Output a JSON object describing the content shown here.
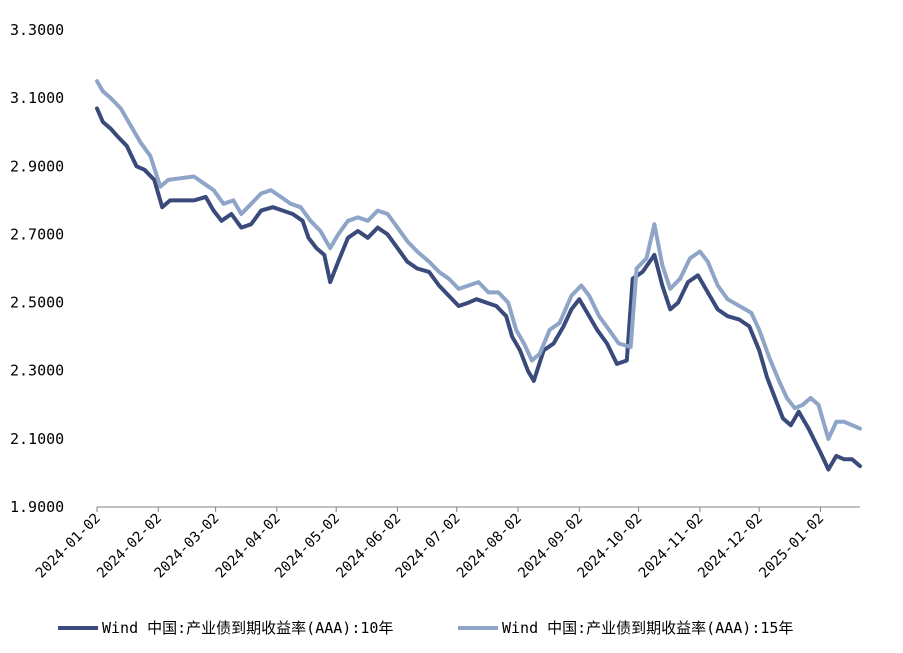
{
  "chart_data": {
    "type": "line",
    "title": "",
    "xlabel": "",
    "ylabel": "",
    "ylim": [
      1.9,
      3.3
    ],
    "yticks": [
      "3.3000",
      "3.1000",
      "2.9000",
      "2.7000",
      "2.5000",
      "2.3000",
      "2.1000",
      "1.9000"
    ],
    "xticks": [
      "2024-01-02",
      "2024-02-02",
      "2024-03-02",
      "2024-04-02",
      "2024-05-02",
      "2024-06-02",
      "2024-07-02",
      "2024-08-02",
      "2024-09-02",
      "2024-10-02",
      "2024-11-02",
      "2024-12-02",
      "2025-01-02"
    ],
    "x_start": "2024-01-02",
    "x_end": "2025-01-22",
    "grid": false,
    "legend_position": "bottom",
    "series": [
      {
        "name": "Wind 中国:产业债到期收益率(AAA):10年",
        "color": "#3a4a7a",
        "points": [
          [
            "2024-01-02",
            3.07
          ],
          [
            "2024-01-05",
            3.03
          ],
          [
            "2024-01-09",
            3.01
          ],
          [
            "2024-01-12",
            2.99
          ],
          [
            "2024-01-17",
            2.96
          ],
          [
            "2024-01-22",
            2.9
          ],
          [
            "2024-01-26",
            2.89
          ],
          [
            "2024-01-31",
            2.86
          ],
          [
            "2024-02-04",
            2.78
          ],
          [
            "2024-02-08",
            2.8
          ],
          [
            "2024-02-20",
            2.8
          ],
          [
            "2024-02-26",
            2.81
          ],
          [
            "2024-03-01",
            2.77
          ],
          [
            "2024-03-05",
            2.74
          ],
          [
            "2024-03-10",
            2.76
          ],
          [
            "2024-03-15",
            2.72
          ],
          [
            "2024-03-20",
            2.73
          ],
          [
            "2024-03-25",
            2.77
          ],
          [
            "2024-03-31",
            2.78
          ],
          [
            "2024-04-05",
            2.77
          ],
          [
            "2024-04-10",
            2.76
          ],
          [
            "2024-04-15",
            2.74
          ],
          [
            "2024-04-18",
            2.69
          ],
          [
            "2024-04-22",
            2.66
          ],
          [
            "2024-04-26",
            2.64
          ],
          [
            "2024-04-29",
            2.56
          ],
          [
            "2024-05-03",
            2.62
          ],
          [
            "2024-05-08",
            2.69
          ],
          [
            "2024-05-13",
            2.71
          ],
          [
            "2024-05-18",
            2.69
          ],
          [
            "2024-05-23",
            2.72
          ],
          [
            "2024-05-28",
            2.7
          ],
          [
            "2024-06-02",
            2.66
          ],
          [
            "2024-06-07",
            2.62
          ],
          [
            "2024-06-12",
            2.6
          ],
          [
            "2024-06-18",
            2.59
          ],
          [
            "2024-06-23",
            2.55
          ],
          [
            "2024-06-28",
            2.52
          ],
          [
            "2024-07-03",
            2.49
          ],
          [
            "2024-07-08",
            2.5
          ],
          [
            "2024-07-12",
            2.51
          ],
          [
            "2024-07-17",
            2.5
          ],
          [
            "2024-07-22",
            2.49
          ],
          [
            "2024-07-27",
            2.46
          ],
          [
            "2024-07-30",
            2.4
          ],
          [
            "2024-08-03",
            2.36
          ],
          [
            "2024-08-07",
            2.3
          ],
          [
            "2024-08-10",
            2.27
          ],
          [
            "2024-08-15",
            2.36
          ],
          [
            "2024-08-20",
            2.38
          ],
          [
            "2024-08-25",
            2.43
          ],
          [
            "2024-08-29",
            2.48
          ],
          [
            "2024-09-02",
            2.51
          ],
          [
            "2024-09-06",
            2.47
          ],
          [
            "2024-09-11",
            2.42
          ],
          [
            "2024-09-16",
            2.38
          ],
          [
            "2024-09-21",
            2.32
          ],
          [
            "2024-09-26",
            2.33
          ],
          [
            "2024-09-29",
            2.57
          ],
          [
            "2024-10-04",
            2.59
          ],
          [
            "2024-10-10",
            2.64
          ],
          [
            "2024-10-14",
            2.55
          ],
          [
            "2024-10-18",
            2.48
          ],
          [
            "2024-10-22",
            2.5
          ],
          [
            "2024-10-27",
            2.56
          ],
          [
            "2024-11-01",
            2.58
          ],
          [
            "2024-11-06",
            2.53
          ],
          [
            "2024-11-11",
            2.48
          ],
          [
            "2024-11-16",
            2.46
          ],
          [
            "2024-11-22",
            2.45
          ],
          [
            "2024-11-27",
            2.43
          ],
          [
            "2024-12-02",
            2.36
          ],
          [
            "2024-12-06",
            2.28
          ],
          [
            "2024-12-10",
            2.22
          ],
          [
            "2024-12-14",
            2.16
          ],
          [
            "2024-12-18",
            2.14
          ],
          [
            "2024-12-22",
            2.18
          ],
          [
            "2024-12-27",
            2.13
          ],
          [
            "2025-01-02",
            2.06
          ],
          [
            "2025-01-06",
            2.01
          ],
          [
            "2025-01-10",
            2.05
          ],
          [
            "2025-01-14",
            2.04
          ],
          [
            "2025-01-18",
            2.04
          ],
          [
            "2025-01-22",
            2.02
          ]
        ]
      },
      {
        "name": "Wind 中国:产业债到期收益率(AAA):15年",
        "color": "#8ea5c8",
        "points": [
          [
            "2024-01-02",
            3.15
          ],
          [
            "2024-01-05",
            3.12
          ],
          [
            "2024-01-09",
            3.1
          ],
          [
            "2024-01-14",
            3.07
          ],
          [
            "2024-01-19",
            3.02
          ],
          [
            "2024-01-24",
            2.97
          ],
          [
            "2024-01-29",
            2.93
          ],
          [
            "2024-02-03",
            2.84
          ],
          [
            "2024-02-07",
            2.86
          ],
          [
            "2024-02-20",
            2.87
          ],
          [
            "2024-02-25",
            2.85
          ],
          [
            "2024-03-01",
            2.83
          ],
          [
            "2024-03-06",
            2.79
          ],
          [
            "2024-03-11",
            2.8
          ],
          [
            "2024-03-15",
            2.76
          ],
          [
            "2024-03-20",
            2.79
          ],
          [
            "2024-03-25",
            2.82
          ],
          [
            "2024-03-30",
            2.83
          ],
          [
            "2024-04-04",
            2.81
          ],
          [
            "2024-04-09",
            2.79
          ],
          [
            "2024-04-14",
            2.78
          ],
          [
            "2024-04-19",
            2.74
          ],
          [
            "2024-04-24",
            2.71
          ],
          [
            "2024-04-29",
            2.66
          ],
          [
            "2024-05-03",
            2.7
          ],
          [
            "2024-05-08",
            2.74
          ],
          [
            "2024-05-13",
            2.75
          ],
          [
            "2024-05-18",
            2.74
          ],
          [
            "2024-05-23",
            2.77
          ],
          [
            "2024-05-28",
            2.76
          ],
          [
            "2024-06-02",
            2.72
          ],
          [
            "2024-06-07",
            2.68
          ],
          [
            "2024-06-12",
            2.65
          ],
          [
            "2024-06-18",
            2.62
          ],
          [
            "2024-06-23",
            2.59
          ],
          [
            "2024-06-28",
            2.57
          ],
          [
            "2024-07-03",
            2.54
          ],
          [
            "2024-07-08",
            2.55
          ],
          [
            "2024-07-13",
            2.56
          ],
          [
            "2024-07-18",
            2.53
          ],
          [
            "2024-07-23",
            2.53
          ],
          [
            "2024-07-28",
            2.5
          ],
          [
            "2024-08-01",
            2.42
          ],
          [
            "2024-08-05",
            2.38
          ],
          [
            "2024-08-09",
            2.33
          ],
          [
            "2024-08-13",
            2.35
          ],
          [
            "2024-08-18",
            2.42
          ],
          [
            "2024-08-23",
            2.44
          ],
          [
            "2024-08-29",
            2.52
          ],
          [
            "2024-09-03",
            2.55
          ],
          [
            "2024-09-07",
            2.52
          ],
          [
            "2024-09-12",
            2.46
          ],
          [
            "2024-09-17",
            2.42
          ],
          [
            "2024-09-22",
            2.38
          ],
          [
            "2024-09-28",
            2.37
          ],
          [
            "2024-10-01",
            2.6
          ],
          [
            "2024-10-06",
            2.63
          ],
          [
            "2024-10-10",
            2.73
          ],
          [
            "2024-10-14",
            2.61
          ],
          [
            "2024-10-18",
            2.54
          ],
          [
            "2024-10-23",
            2.57
          ],
          [
            "2024-10-28",
            2.63
          ],
          [
            "2024-11-02",
            2.65
          ],
          [
            "2024-11-06",
            2.62
          ],
          [
            "2024-11-11",
            2.55
          ],
          [
            "2024-11-16",
            2.51
          ],
          [
            "2024-11-22",
            2.49
          ],
          [
            "2024-11-28",
            2.47
          ],
          [
            "2024-12-02",
            2.42
          ],
          [
            "2024-12-07",
            2.34
          ],
          [
            "2024-12-12",
            2.27
          ],
          [
            "2024-12-16",
            2.22
          ],
          [
            "2024-12-20",
            2.19
          ],
          [
            "2024-12-24",
            2.2
          ],
          [
            "2024-12-28",
            2.22
          ],
          [
            "2025-01-01",
            2.2
          ],
          [
            "2025-01-06",
            2.1
          ],
          [
            "2025-01-10",
            2.15
          ],
          [
            "2025-01-14",
            2.15
          ],
          [
            "2025-01-18",
            2.14
          ],
          [
            "2025-01-22",
            2.13
          ]
        ]
      }
    ]
  }
}
